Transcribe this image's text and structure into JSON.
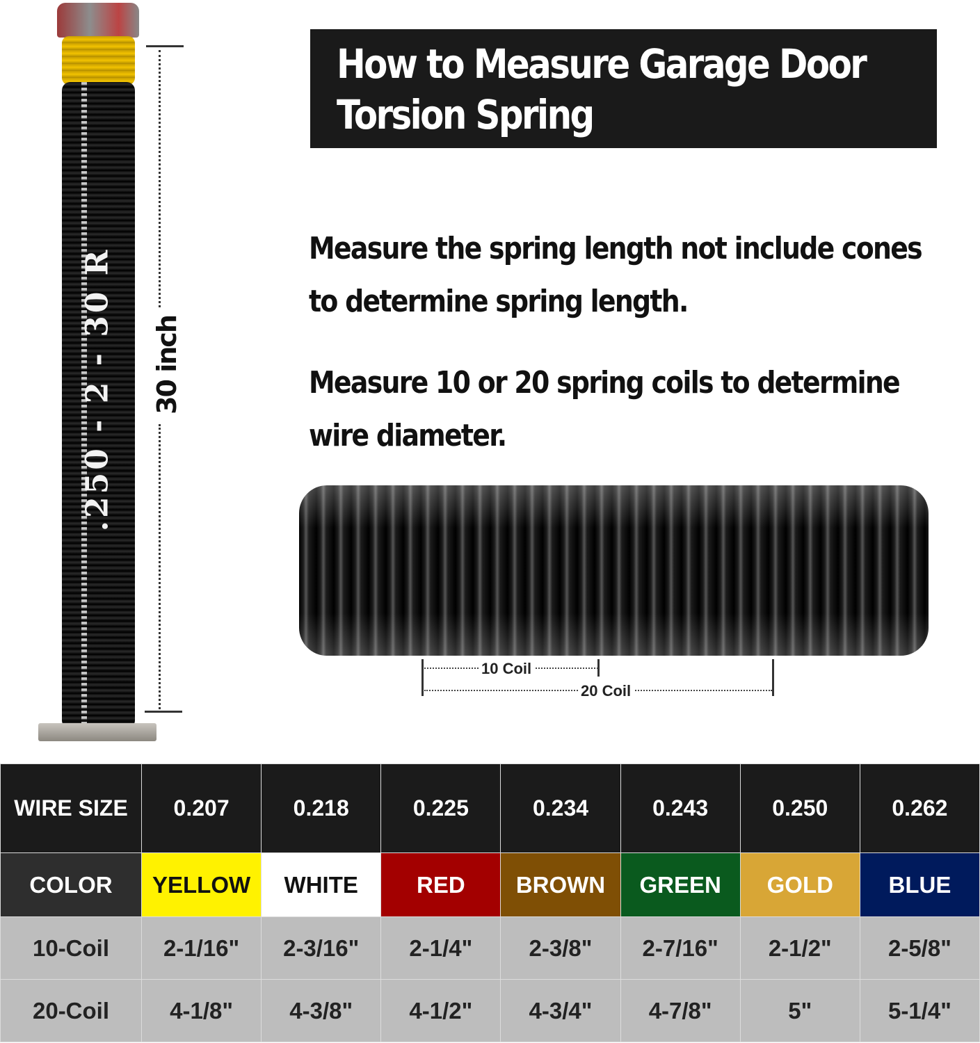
{
  "title": {
    "line1": "How to Measure Garage Door",
    "line2": "Torsion Spring"
  },
  "instructions": [
    {
      "line1": "Measure the spring length not include cones",
      "line2": "to determine spring length."
    },
    {
      "line1": "Measure 10 or 20 spring coils to determine",
      "line2": "wire diameter."
    }
  ],
  "spring_marking": ".250 - 2 - 30 R",
  "length_label": "30 inch",
  "coil_labels": {
    "ten": "10 Coil",
    "twenty": "20 Coil"
  },
  "table": {
    "row_headers": {
      "wire": "WIRE SIZE",
      "color": "COLOR",
      "coil10": "10-Coil",
      "coil20": "20-Coil"
    },
    "columns": [
      {
        "wire": "0.207",
        "color": "YELLOW",
        "bg": "#fff200",
        "fg": "#111111",
        "coil10": "2-1/16\"",
        "coil20": "4-1/8\""
      },
      {
        "wire": "0.218",
        "color": "WHITE",
        "bg": "#ffffff",
        "fg": "#111111",
        "coil10": "2-3/16\"",
        "coil20": "4-3/8\""
      },
      {
        "wire": "0.225",
        "color": "RED",
        "bg": "#a30000",
        "fg": "#ffffff",
        "coil10": "2-1/4\"",
        "coil20": "4-1/2\""
      },
      {
        "wire": "0.234",
        "color": "BROWN",
        "bg": "#7f4f05",
        "fg": "#ffffff",
        "coil10": "2-3/8\"",
        "coil20": "4-3/4\""
      },
      {
        "wire": "0.243",
        "color": "GREEN",
        "bg": "#0a5a1e",
        "fg": "#ffffff",
        "coil10": "2-7/16\"",
        "coil20": "4-7/8\""
      },
      {
        "wire": "0.250",
        "color": "GOLD",
        "bg": "#d8a636",
        "fg": "#ffffff",
        "coil10": "2-1/2\"",
        "coil20": "5\""
      },
      {
        "wire": "0.262",
        "color": "BLUE",
        "bg": "#001a5c",
        "fg": "#ffffff",
        "coil10": "2-5/8\"",
        "coil20": "5-1/4\""
      }
    ]
  }
}
